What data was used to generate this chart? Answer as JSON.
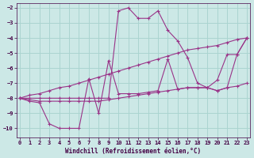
{
  "background_color": "#cce8e6",
  "grid_color": "#aad4d0",
  "line_color": "#993388",
  "xlabel": "Windchill (Refroidissement éolien,°C)",
  "xlim": [
    -0.3,
    23.3
  ],
  "ylim": [
    -10.6,
    -1.7
  ],
  "yticks": [
    -10,
    -9,
    -8,
    -7,
    -6,
    -5,
    -4,
    -3,
    -2
  ],
  "xticks": [
    0,
    1,
    2,
    3,
    4,
    5,
    6,
    7,
    8,
    9,
    10,
    11,
    12,
    13,
    14,
    15,
    16,
    17,
    18,
    19,
    20,
    21,
    22,
    23
  ],
  "series": [
    {
      "x": [
        0,
        1,
        2,
        3,
        4,
        5,
        6,
        7,
        8,
        9,
        10,
        11,
        12,
        13,
        14,
        15,
        16,
        17,
        18,
        19,
        20,
        21,
        22,
        23
      ],
      "y": [
        -8.0,
        -8.0,
        -8.0,
        -8.0,
        -8.0,
        -8.0,
        -8.0,
        -8.0,
        -8.0,
        -8.0,
        -2.2,
        -2.0,
        -2.7,
        -2.7,
        -2.2,
        -3.5,
        -4.2,
        -5.3,
        -7.0,
        -7.3,
        -6.8,
        -5.1,
        -5.1,
        -4.0
      ]
    },
    {
      "x": [
        0,
        1,
        2,
        3,
        4,
        5,
        6,
        7,
        8,
        9,
        10,
        11,
        12,
        13,
        14,
        15,
        16,
        17,
        18,
        19,
        20,
        21,
        22,
        23
      ],
      "y": [
        -8.0,
        -7.8,
        -7.7,
        -7.5,
        -7.3,
        -7.2,
        -7.0,
        -6.8,
        -6.6,
        -6.4,
        -6.2,
        -6.0,
        -5.8,
        -5.6,
        -5.4,
        -5.2,
        -5.0,
        -4.8,
        -4.7,
        -4.6,
        -4.5,
        -4.3,
        -4.1,
        -4.0
      ]
    },
    {
      "x": [
        0,
        1,
        2,
        3,
        4,
        5,
        6,
        7,
        8,
        9,
        10,
        11,
        12,
        13,
        14,
        15,
        16,
        17,
        18,
        19,
        20,
        21,
        22,
        23
      ],
      "y": [
        -8.0,
        -8.1,
        -8.2,
        -8.2,
        -8.2,
        -8.2,
        -8.2,
        -8.2,
        -8.2,
        -8.1,
        -8.0,
        -7.9,
        -7.8,
        -7.7,
        -7.6,
        -7.5,
        -7.4,
        -7.3,
        -7.3,
        -7.3,
        -7.5,
        -7.3,
        -7.2,
        -7.0
      ]
    },
    {
      "x": [
        0,
        1,
        2,
        3,
        4,
        5,
        6,
        7,
        8,
        9,
        10,
        11,
        12,
        13,
        14,
        15,
        16,
        17,
        18,
        19,
        20,
        21,
        22,
        23
      ],
      "y": [
        -8.0,
        -8.2,
        -8.3,
        -9.7,
        -10.0,
        -10.0,
        -10.0,
        -6.7,
        -9.0,
        -5.5,
        -7.7,
        -7.7,
        -7.7,
        -7.6,
        -7.5,
        -5.4,
        -7.4,
        -7.3,
        -7.3,
        -7.3,
        -7.5,
        -7.3,
        -5.1,
        -4.0
      ]
    }
  ]
}
